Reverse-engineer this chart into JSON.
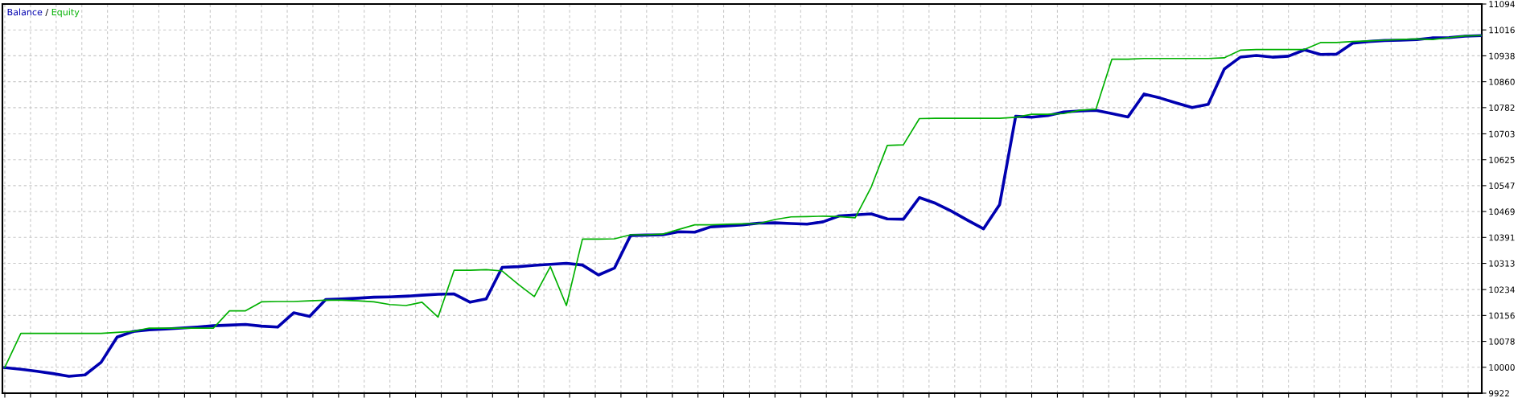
{
  "chart_data": {
    "type": "line",
    "categories": [
      null,
      null,
      null,
      null,
      null,
      null,
      null,
      null,
      null,
      null,
      null,
      null,
      null,
      null,
      null,
      null,
      null,
      null,
      null,
      null,
      null,
      null,
      null,
      null,
      null,
      null,
      null,
      null,
      null,
      null,
      null,
      null,
      null,
      null,
      null,
      null,
      null,
      null,
      null,
      null,
      null,
      null,
      null,
      null,
      null,
      null,
      null,
      null,
      null,
      null,
      null,
      null,
      null,
      null,
      null,
      null,
      null,
      null,
      null,
      null,
      null,
      null,
      null,
      null,
      null,
      null,
      null,
      null,
      null,
      null,
      null,
      null,
      null,
      null,
      null,
      null,
      null,
      null,
      null,
      null,
      null,
      null,
      null,
      null,
      null,
      null,
      null,
      null,
      null,
      null,
      null,
      null,
      null
    ],
    "series": [
      {
        "name": "Equity",
        "color": "#00b000",
        "values": [
          10000,
          10102,
          10102,
          10102,
          10102,
          10102,
          10102,
          10105,
          10108,
          10118,
          10118,
          10118,
          10118,
          10118,
          10170,
          10170,
          10197,
          10198,
          10198,
          10200,
          10202,
          10202,
          10200,
          10197,
          10189,
          10186,
          10196,
          10151,
          10292,
          10292,
          10294,
          10290,
          10250,
          10213,
          10303,
          10186,
          10386,
          10386,
          10387,
          10399,
          10399,
          10401,
          10415,
          10429,
          10429,
          10431,
          10432,
          10433,
          10445,
          10453,
          10454,
          10455,
          10454,
          10450,
          10543,
          10668,
          10670,
          10749,
          10750,
          10750,
          10750,
          10750,
          10750,
          10753,
          10762,
          10762,
          10764,
          10774,
          10777,
          10928,
          10928,
          10930,
          10930,
          10930,
          10930,
          10930,
          10932,
          10955,
          10957,
          10957,
          10957,
          10957,
          10978,
          10978,
          10981,
          10983,
          10985,
          10987,
          10989,
          10987,
          10993,
          10998,
          10999
        ]
      },
      {
        "name": "Balance",
        "color": "#0000b0",
        "values": [
          9999,
          9994,
          9988,
          9981,
          9973,
          9977,
          10015,
          10091,
          10108,
          10113,
          10115,
          10118,
          10121,
          10125,
          10127,
          10129,
          10124,
          10121,
          10164,
          10153,
          10204,
          10206,
          10208,
          10211,
          10212,
          10214,
          10217,
          10220,
          10221,
          10196,
          10206,
          10301,
          10303,
          10307,
          10310,
          10313,
          10308,
          10278,
          10299,
          10397,
          10398,
          10399,
          10408,
          10407,
          10423,
          10426,
          10429,
          10434,
          10435,
          10433,
          10431,
          10438,
          10456,
          10459,
          10462,
          10447,
          10446,
          10511,
          10494,
          10470,
          10443,
          10417,
          10490,
          10756,
          10753,
          10758,
          10769,
          10772,
          10774,
          10764,
          10754,
          10823,
          10811,
          10796,
          10782,
          10792,
          10898,
          10934,
          10939,
          10934,
          10937,
          10956,
          10942,
          10943,
          10976,
          10981,
          10984,
          10985,
          10987,
          10992,
          10993,
          10997,
          10999
        ]
      }
    ],
    "ylim": [
      9922,
      11094
    ],
    "yticks": [
      9922,
      10000,
      10078,
      10156,
      10234,
      10313,
      10391,
      10469,
      10547,
      10625,
      10703,
      10782,
      10860,
      10938,
      11016,
      11094
    ],
    "grid": true,
    "legend": "top left",
    "annotations": [
      "/"
    ],
    "line_style": "solid",
    "marker": "none"
  }
}
